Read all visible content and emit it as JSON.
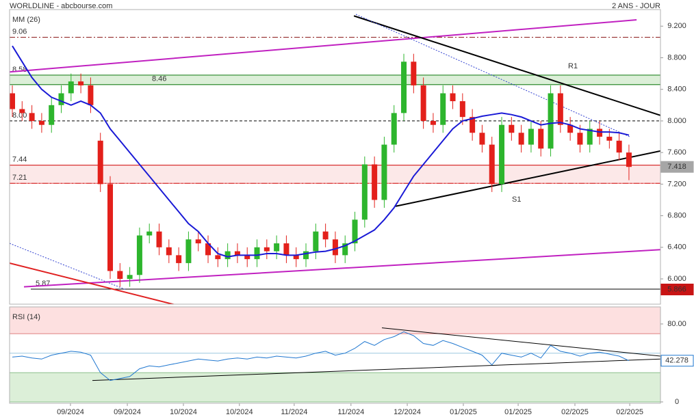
{
  "chart_data": [
    {
      "type": "candlestick",
      "title": "WORLDLINE - abcbourse.com",
      "subtitle": "2 ANS - JOUR",
      "xlim": [
        -0.28,
        66.22
      ],
      "xticks": [
        {
          "value": 5.94,
          "label": "09/2024"
        },
        {
          "value": 11.75,
          "label": "09/2024"
        },
        {
          "value": 17.48,
          "label": "10/2024"
        },
        {
          "value": 23.2,
          "label": "10/2024"
        },
        {
          "value": 28.8,
          "label": "11/2024"
        },
        {
          "value": 34.6,
          "label": "11/2024"
        },
        {
          "value": 40.35,
          "label": "12/2024"
        },
        {
          "value": 46.08,
          "label": "01/2025"
        },
        {
          "value": 51.68,
          "label": "01/2025"
        },
        {
          "value": 57.48,
          "label": "02/2025"
        },
        {
          "value": 63.08,
          "label": "02/2025"
        }
      ],
      "ylim": [
        5.68,
        9.41
      ],
      "yticks": [
        {
          "value": 6,
          "label": "6.000"
        },
        {
          "value": 6.4,
          "label": "6.400"
        },
        {
          "value": 6.8,
          "label": "6.800"
        },
        {
          "value": 7.2,
          "label": "7.200"
        },
        {
          "value": 7.6,
          "label": "7.600"
        },
        {
          "value": 8,
          "label": "8.000"
        },
        {
          "value": 8.4,
          "label": "8.400"
        },
        {
          "value": 8.8,
          "label": "8.800"
        },
        {
          "value": 9.2,
          "label": "9.200"
        }
      ],
      "up_color": "#2db52d",
      "down_color": "#e3201b",
      "open": [
        8.35,
        8.15,
        8.1,
        8.0,
        7.95,
        8.2,
        8.35,
        8.5,
        8.45,
        7.75,
        7.2,
        6.1,
        6.0,
        6.05,
        6.55,
        6.6,
        6.4,
        6.3,
        6.2,
        6.5,
        6.45,
        6.3,
        6.25,
        6.35,
        6.3,
        6.25,
        6.4,
        6.35,
        6.45,
        6.3,
        6.25,
        6.35,
        6.6,
        6.5,
        6.3,
        6.45,
        6.75,
        7.45,
        7.0,
        7.7,
        8.1,
        8.75,
        8.45,
        8.0,
        7.95,
        8.35,
        8.25,
        8.05,
        7.85,
        7.7,
        7.2,
        7.95,
        7.85,
        7.7,
        7.9,
        7.65,
        8.35,
        7.95,
        7.85,
        7.7,
        7.9,
        7.8,
        7.75,
        7.6
      ],
      "high": [
        8.45,
        8.25,
        8.2,
        8.1,
        8.3,
        8.45,
        8.6,
        8.6,
        8.55,
        7.85,
        7.3,
        6.2,
        6.15,
        6.65,
        6.7,
        6.7,
        6.5,
        6.4,
        6.6,
        6.6,
        6.55,
        6.4,
        6.45,
        6.45,
        6.4,
        6.5,
        6.5,
        6.55,
        6.55,
        6.4,
        6.45,
        6.7,
        6.7,
        6.6,
        6.55,
        6.85,
        7.55,
        7.55,
        7.8,
        8.2,
        8.85,
        8.85,
        8.55,
        8.1,
        8.45,
        8.45,
        8.35,
        8.15,
        7.95,
        7.8,
        8.05,
        8.05,
        7.95,
        8.0,
        8.0,
        8.45,
        8.45,
        8.05,
        7.95,
        8.0,
        8.0,
        7.9,
        7.85,
        7.7
      ],
      "low": [
        8.05,
        8.0,
        7.9,
        7.85,
        7.85,
        8.1,
        8.25,
        8.35,
        8.1,
        7.1,
        6.0,
        5.9,
        5.9,
        5.95,
        6.45,
        6.3,
        6.2,
        6.1,
        6.1,
        6.35,
        6.2,
        6.15,
        6.15,
        6.2,
        6.15,
        6.15,
        6.25,
        6.25,
        6.2,
        6.15,
        6.15,
        6.25,
        6.4,
        6.2,
        6.2,
        6.35,
        6.65,
        6.9,
        6.9,
        7.6,
        8.0,
        8.35,
        7.9,
        7.85,
        7.85,
        8.15,
        7.95,
        7.75,
        7.6,
        7.1,
        7.1,
        7.75,
        7.6,
        7.6,
        7.55,
        7.55,
        7.85,
        7.75,
        7.6,
        7.6,
        7.7,
        7.65,
        7.5,
        7.25
      ],
      "close": [
        8.15,
        8.1,
        8.0,
        7.95,
        8.2,
        8.35,
        8.5,
        8.45,
        8.2,
        7.2,
        6.1,
        6.0,
        6.05,
        6.55,
        6.6,
        6.4,
        6.3,
        6.2,
        6.5,
        6.45,
        6.3,
        6.25,
        6.35,
        6.3,
        6.25,
        6.4,
        6.35,
        6.45,
        6.3,
        6.25,
        6.35,
        6.6,
        6.5,
        6.3,
        6.45,
        6.75,
        7.45,
        7.0,
        7.7,
        8.1,
        8.75,
        8.45,
        8.0,
        7.95,
        8.35,
        8.25,
        8.05,
        7.85,
        7.7,
        7.2,
        7.95,
        7.85,
        7.7,
        7.9,
        7.65,
        8.35,
        7.95,
        7.85,
        7.7,
        7.9,
        7.8,
        7.75,
        7.6,
        7.418
      ],
      "series": [
        {
          "name": "MM (26)",
          "color": "#1a1ad6",
          "values": [
            8.95,
            8.75,
            8.55,
            8.4,
            8.3,
            8.25,
            8.2,
            8.25,
            8.2,
            8.1,
            7.9,
            7.75,
            7.6,
            7.45,
            7.3,
            7.15,
            7.0,
            6.85,
            6.7,
            6.6,
            6.45,
            6.32,
            6.28,
            6.3,
            6.3,
            6.3,
            6.32,
            6.32,
            6.3,
            6.3,
            6.32,
            6.34,
            6.35,
            6.38,
            6.42,
            6.48,
            6.55,
            6.62,
            6.75,
            6.9,
            7.1,
            7.3,
            7.45,
            7.6,
            7.75,
            7.9,
            8.0,
            8.03,
            8.06,
            8.08,
            8.1,
            8.08,
            8.05,
            8.0,
            7.95,
            7.97,
            7.98,
            7.95,
            7.9,
            7.88,
            7.86,
            7.86,
            7.85,
            7.82
          ]
        }
      ],
      "zones": [
        {
          "from": 8.46,
          "to": 8.58,
          "fill": "#dcefd8",
          "stroke": "#2e8b2e"
        },
        {
          "from": 7.21,
          "to": 7.44,
          "fill": "#fce8e8",
          "stroke": "#e05050"
        }
      ],
      "levels": [
        {
          "value": 9.06,
          "color": "#8b1a1a",
          "dash": "8 3 2 3"
        },
        {
          "value": 8.58,
          "color": "#2e8b2e",
          "dash": "none"
        },
        {
          "value": 8.46,
          "color": "#2e8b2e",
          "dash": "none"
        },
        {
          "value": 8,
          "label": "8.00",
          "color": "#000000",
          "dash": "4 3"
        },
        {
          "value": 7.44,
          "color": "#d42020",
          "dash": "none"
        },
        {
          "value": 7.21,
          "color": "#d42020",
          "dash": "8 3 2 3"
        },
        {
          "value": 5.87,
          "color": "#000000",
          "dash": "none"
        }
      ],
      "trendlines": [
        {
          "x": [
            -0.28,
            63.78
          ],
          "y": [
            8.62,
            9.28
          ],
          "color": "#c020c0",
          "width": 2,
          "dash": "none"
        },
        {
          "x": [
            1.19,
            66.22
          ],
          "y": [
            5.9,
            6.37
          ],
          "color": "#c020c0",
          "width": 2,
          "dash": "none"
        },
        {
          "x": [
            34.9,
            66.22
          ],
          "y": [
            9.33,
            8.07
          ],
          "color": "#000000",
          "width": 2,
          "dash": "none"
        },
        {
          "x": [
            39.16,
            66.22
          ],
          "y": [
            6.92,
            7.62
          ],
          "color": "#000000",
          "width": 2,
          "dash": "none"
        },
        {
          "x": [
            -0.28,
            18.32
          ],
          "y": [
            6.2,
            5.62
          ],
          "color": "#e02020",
          "width": 2,
          "dash": "none"
        },
        {
          "x": [
            35.1,
            63.08
          ],
          "y": [
            9.35,
            7.8
          ],
          "color": "#3040d0",
          "width": 1,
          "dash": "2 2"
        },
        {
          "x": [
            -0.28,
            11.68
          ],
          "y": [
            6.45,
            5.86
          ],
          "color": "#3040d0",
          "width": 1,
          "dash": "2 2"
        }
      ],
      "annotations": [
        "R1",
        "S1"
      ],
      "price_tags": [
        {
          "value": 7.418,
          "color": "#a6a6a6",
          "text_color": "#000000"
        },
        {
          "value": 5.866,
          "color": "#c81414",
          "text_color": "#ffffff"
        }
      ]
    },
    {
      "type": "line",
      "xlim": [
        -0.28,
        66.22
      ],
      "ylim": [
        -1.4,
        97.5
      ],
      "yticks": [
        0,
        {
          "value": 40,
          "label": "40.00"
        },
        {
          "value": 80,
          "label": "80.00"
        }
      ],
      "series": [
        {
          "name": "RSI (14)",
          "color": "#1f77d0",
          "values": [
            46,
            47,
            45,
            44,
            48,
            50,
            52,
            51,
            48,
            30,
            22,
            24,
            26,
            34,
            37,
            36,
            38,
            40,
            42,
            44,
            43,
            42,
            44,
            45,
            44,
            46,
            45,
            47,
            46,
            45,
            47,
            50,
            52,
            48,
            50,
            55,
            62,
            58,
            64,
            67,
            72,
            68,
            60,
            58,
            63,
            60,
            56,
            52,
            48,
            38,
            50,
            48,
            46,
            50,
            45,
            58,
            52,
            50,
            47,
            50,
            51,
            49,
            47,
            42.278
          ]
        }
      ],
      "zones": [
        {
          "from": 70,
          "to": 100,
          "fill": "#fde0e0",
          "stroke": "#e08080"
        },
        {
          "from": 0,
          "to": 30,
          "fill": "#dcefd8",
          "stroke": "#8cc08c"
        }
      ],
      "levels": [
        {
          "value": 50,
          "color": "#9cc8e0",
          "dash": "none"
        }
      ],
      "trendlines": [
        {
          "x": [
            8.18,
            66.22
          ],
          "y": [
            22,
            44
          ],
          "color": "#000000",
          "width": 1,
          "dash": "none"
        },
        {
          "x": [
            37.76,
            66.22
          ],
          "y": [
            76,
            47
          ],
          "color": "#000000",
          "width": 1,
          "dash": "none"
        }
      ],
      "price_tags": [
        {
          "value": 42.278,
          "color": "#ffffff",
          "text_color": "#000000"
        }
      ]
    }
  ]
}
